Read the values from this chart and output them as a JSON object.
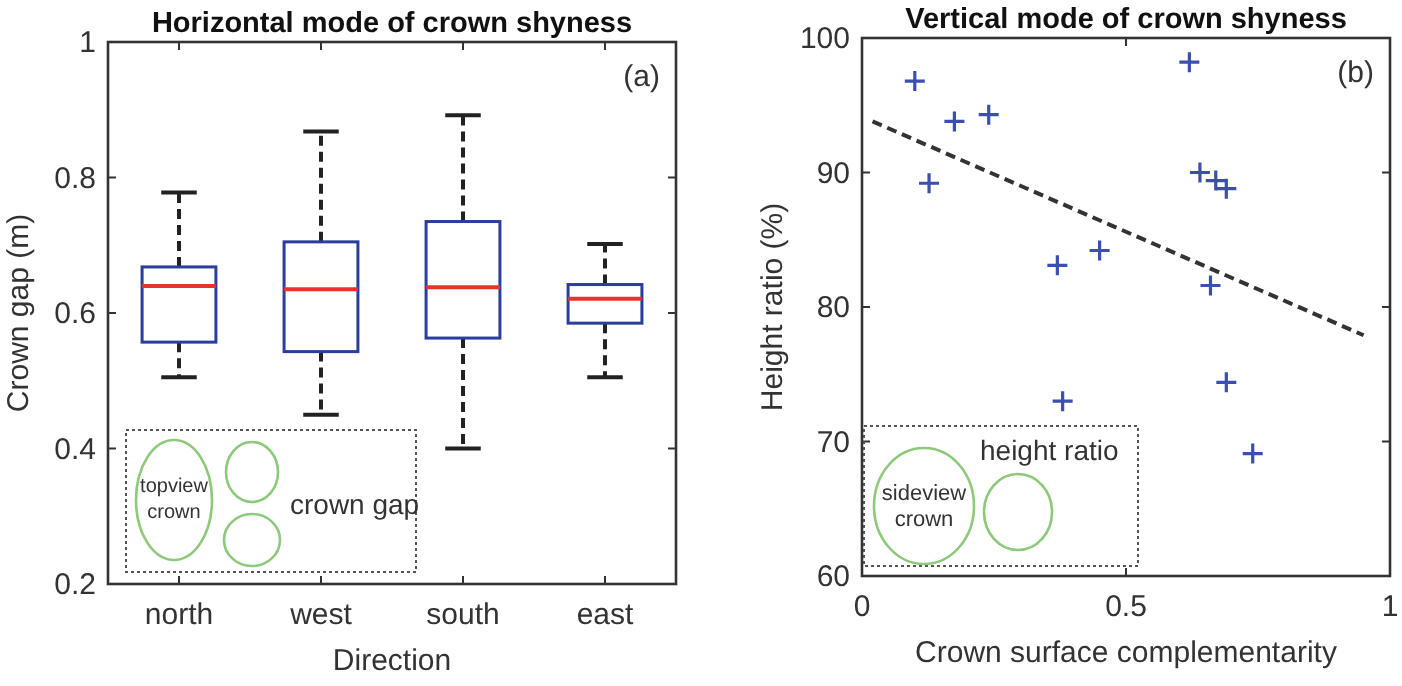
{
  "chart_data": [
    {
      "type": "box",
      "title": "Horizontal mode of crown shyness",
      "xlabel": "Direction",
      "ylabel": "Crown gap (m)",
      "categories": [
        "north",
        "west",
        "south",
        "east"
      ],
      "series": [
        {
          "color": "#2b3d9e",
          "boxes": [
            {
              "low": 0.505,
              "q1": 0.557,
              "median": 0.64,
              "q3": 0.668,
              "high": 0.778
            },
            {
              "low": 0.45,
              "q1": 0.543,
              "median": 0.635,
              "q3": 0.705,
              "high": 0.868
            },
            {
              "low": 0.4,
              "q1": 0.563,
              "median": 0.638,
              "q3": 0.735,
              "high": 0.892
            },
            {
              "low": 0.505,
              "q1": 0.585,
              "median": 0.621,
              "q3": 0.642,
              "high": 0.702
            }
          ]
        }
      ],
      "ylim": [
        0.2,
        1
      ],
      "yticks": [
        0.2,
        0.4,
        0.6,
        0.8,
        1
      ],
      "annotations": [
        "(a)",
        "topview crown",
        "crown gap"
      ]
    },
    {
      "type": "scatter",
      "title": "Vertical mode of crown shyness",
      "xlabel": "Crown surface complementarity",
      "ylabel": "Height ratio (%)",
      "x": [
        0.1,
        0.127,
        0.175,
        0.24,
        0.37,
        0.38,
        0.45,
        0.62,
        0.64,
        0.67,
        0.69,
        0.66,
        0.69,
        0.74
      ],
      "series": [
        {
          "color": "#3a4fae",
          "marker": "cross",
          "values": [
            96.8,
            89.2,
            93.8,
            94.3,
            83.1,
            73.0,
            84.2,
            98.2,
            90.0,
            89.4,
            88.8,
            81.6,
            74.4,
            69.1
          ]
        },
        {
          "type": "line",
          "color": "#333333",
          "line_style": "dashed",
          "marker": "none",
          "x": [
            0.02,
            0.95
          ],
          "values": [
            93.8,
            77.9
          ]
        }
      ],
      "xlim": [
        0,
        1
      ],
      "xticks": [
        0,
        0.5,
        1
      ],
      "ylim": [
        60,
        100
      ],
      "yticks": [
        60,
        70,
        80,
        90,
        100
      ],
      "annotations": [
        "(b)",
        "sideview crown",
        "height ratio"
      ]
    }
  ]
}
